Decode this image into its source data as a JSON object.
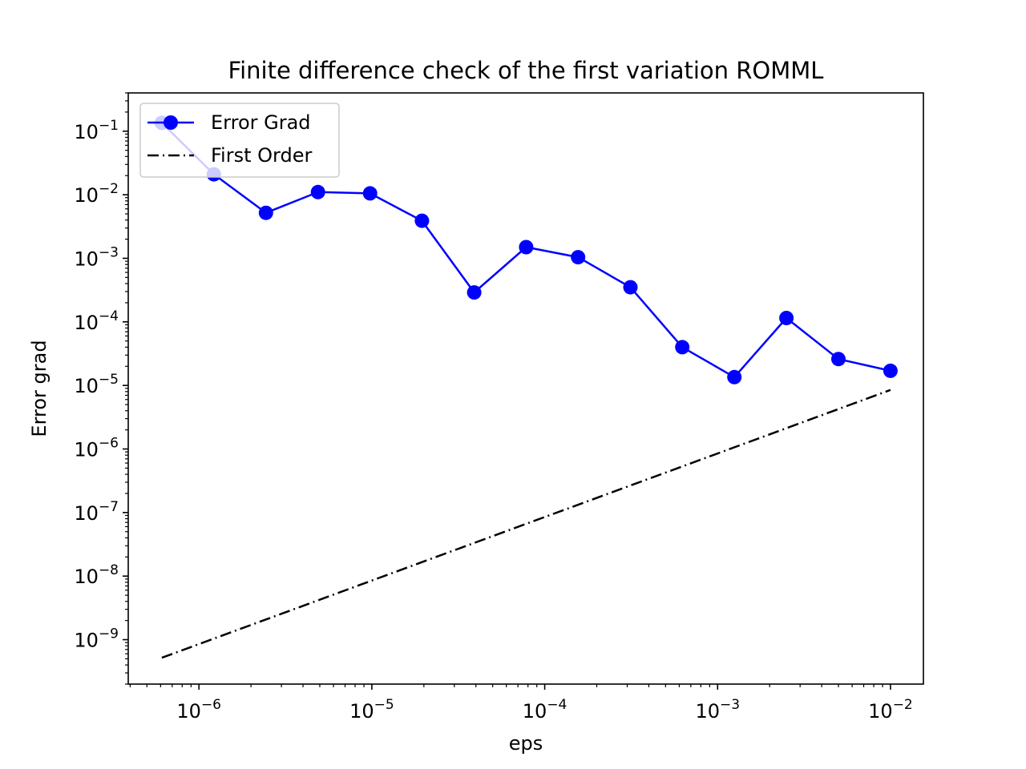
{
  "chart_data": {
    "type": "line",
    "title": "Finite difference check of the first variation ROMML",
    "xlabel": "eps",
    "ylabel": "Error grad",
    "x_scale": "log",
    "y_scale": "log",
    "xlim": [
      3.9e-07,
      0.0155
    ],
    "ylim": [
      2e-10,
      0.4
    ],
    "x_tick_labels": [
      "10^-6",
      "10^-5",
      "10^-4",
      "10^-3",
      "10^-2"
    ],
    "y_tick_labels": [
      "10^-9",
      "10^-8",
      "10^-7",
      "10^-6",
      "10^-5",
      "10^-4",
      "10^-3",
      "10^-2",
      "10^-1"
    ],
    "grid": false,
    "legend_position": "upper-left",
    "series": [
      {
        "name": "Error Grad",
        "color": "#0000ff",
        "style": "solid",
        "marker": "circle",
        "x": [
          6.1e-07,
          1.22e-06,
          2.44e-06,
          4.88e-06,
          9.77e-06,
          1.95e-05,
          3.91e-05,
          7.81e-05,
          0.000156,
          0.000313,
          0.000625,
          0.00125,
          0.0025,
          0.005,
          0.01
        ],
        "y": [
          0.135,
          0.021,
          0.0052,
          0.011,
          0.0105,
          0.0039,
          0.00029,
          0.0015,
          0.00104,
          0.00035,
          4e-05,
          1.35e-05,
          0.000115,
          2.6e-05,
          1.7e-05
        ]
      },
      {
        "name": "First Order",
        "color": "#000000",
        "style": "dashdot",
        "marker": "none",
        "x": [
          6.1e-07,
          0.01
        ],
        "y": [
          5.2e-10,
          8.5e-06
        ]
      }
    ]
  }
}
